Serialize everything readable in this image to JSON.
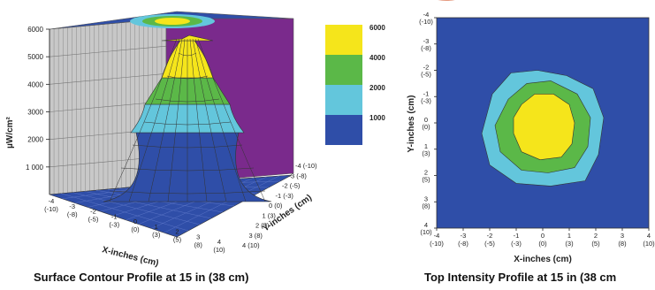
{
  "chart_data": [
    {
      "type": "surface",
      "title": "",
      "caption": "Surface Contour Profile at 15 in (38 cm)",
      "zlabel": "µW/cm²",
      "xlabel": "X-inches (cm)",
      "ylabel": "Y-inches (cm)",
      "zlim": [
        0,
        6000
      ],
      "z_ticks": [
        "6000",
        "5000",
        "4000",
        "3000",
        "2000",
        "1 000"
      ],
      "x_ticks": [
        "-4\n(-10)",
        "-3\n(-8)",
        "-2\n(-5)",
        "-1\n(-3)",
        "0\n(0)",
        "1\n(3)",
        "2\n(5)",
        "3\n(8)",
        "4\n(10)"
      ],
      "y_ticks": [
        "-4 (-10)",
        "-3 (-8)",
        "-2 (-5)",
        "-1 (-3)",
        "0 (0)",
        "1 (3)",
        "2 (5)",
        "3 (8)",
        "4 (10)"
      ],
      "legend": {
        "levels": [
          "6000",
          "4000",
          "2000",
          "1000"
        ],
        "colors": [
          "#f5e51b",
          "#5bb848",
          "#63c6dc",
          "#2f4ea8"
        ]
      },
      "peak": {
        "x": 0,
        "y": 0,
        "value": 6000
      },
      "grid": true
    },
    {
      "type": "heatmap",
      "title": "",
      "caption": "Top Intensity Profile at 15 in (38 cm",
      "xlabel": "X-inches (cm)",
      "ylabel": "Y-inches (cm)",
      "x_ticks": [
        "-4\n(-10)",
        "-3\n(-8)",
        "-2\n(-5)",
        "-1\n(-3)",
        "0\n(0)",
        "1\n(3)",
        "2\n(5)",
        "3\n(8)",
        "4\n(10)"
      ],
      "y_ticks": [
        "-4\n(-10)",
        "-3\n(-8)",
        "-2\n(-5)",
        "-1\n(-3)",
        "0\n(0)",
        "1\n(3)",
        "2\n(5)",
        "3\n(8)",
        "4\n(10)"
      ],
      "xlim": [
        -4,
        4
      ],
      "ylim": [
        -4,
        4
      ],
      "contours": [
        {
          "level": 1000,
          "color": "#63c6dc",
          "points": [
            [
              -1.9,
              -1.1
            ],
            [
              -1.2,
              -1.9
            ],
            [
              -0.2,
              -2.0
            ],
            [
              0.9,
              -1.8
            ],
            [
              1.9,
              -1.3
            ],
            [
              2.3,
              -0.2
            ],
            [
              2.1,
              1.2
            ],
            [
              1.6,
              2.2
            ],
            [
              0.3,
              2.4
            ],
            [
              -1.0,
              2.3
            ],
            [
              -2.0,
              1.6
            ],
            [
              -2.3,
              0.4
            ]
          ]
        },
        {
          "level": 2000,
          "color": "#5bb848",
          "points": [
            [
              -1.3,
              -0.9
            ],
            [
              -0.6,
              -1.5
            ],
            [
              0.3,
              -1.6
            ],
            [
              1.3,
              -1.1
            ],
            [
              1.8,
              -0.2
            ],
            [
              1.7,
              0.9
            ],
            [
              1.2,
              1.7
            ],
            [
              0.2,
              1.9
            ],
            [
              -0.8,
              1.8
            ],
            [
              -1.6,
              1.1
            ],
            [
              -1.8,
              0.1
            ]
          ]
        },
        {
          "level": 4000,
          "color": "#f5e51b",
          "points": [
            [
              -0.8,
              -0.7
            ],
            [
              -0.3,
              -1.1
            ],
            [
              0.4,
              -1.1
            ],
            [
              1.0,
              -0.7
            ],
            [
              1.2,
              0.0
            ],
            [
              1.1,
              0.8
            ],
            [
              0.7,
              1.3
            ],
            [
              -0.1,
              1.4
            ],
            [
              -0.8,
              1.1
            ],
            [
              -1.1,
              0.4
            ],
            [
              -1.1,
              -0.2
            ]
          ]
        }
      ],
      "background_color": "#2f4ea8",
      "grid": false
    }
  ]
}
